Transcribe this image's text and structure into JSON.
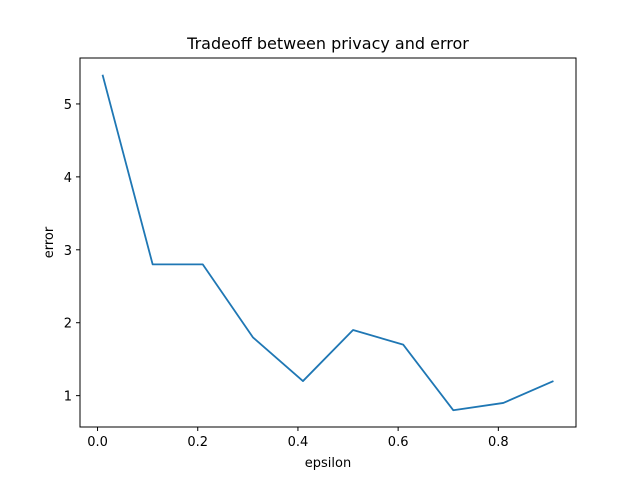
{
  "chart_data": {
    "type": "line",
    "title": "Tradeoff between privacy and error",
    "xlabel": "epsilon",
    "ylabel": "error",
    "xlim": [
      -0.035,
      0.955
    ],
    "ylim": [
      0.57,
      5.63
    ],
    "x_ticks": [
      0.0,
      0.2,
      0.4,
      0.6,
      0.8
    ],
    "x_tick_labels": [
      "0.0",
      "0.2",
      "0.4",
      "0.6",
      "0.8"
    ],
    "y_ticks": [
      1,
      2,
      3,
      4,
      5
    ],
    "y_tick_labels": [
      "1",
      "2",
      "3",
      "4",
      "5"
    ],
    "grid": false,
    "series": [
      {
        "color": "#1f77b4",
        "x": [
          0.01,
          0.11,
          0.21,
          0.31,
          0.41,
          0.51,
          0.61,
          0.71,
          0.81,
          0.91
        ],
        "y": [
          5.4,
          2.8,
          2.8,
          1.8,
          1.2,
          1.9,
          1.7,
          0.8,
          0.9,
          1.2
        ]
      }
    ]
  }
}
